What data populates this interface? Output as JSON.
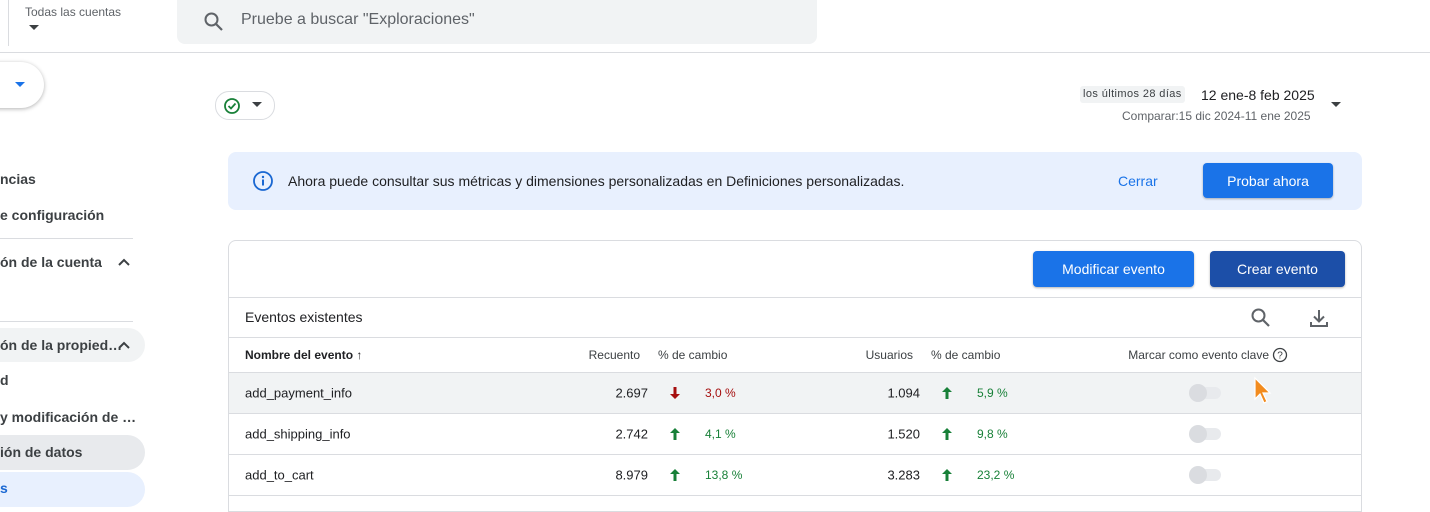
{
  "header": {
    "account_label": "Todas las cuentas",
    "search_placeholder": "Pruebe a buscar \"Exploraciones\""
  },
  "sidebar": {
    "items": [
      "ncias",
      "e configuración",
      "ón de la cuenta",
      "ón de la propied…",
      "d",
      "y modificación de …",
      "ión de datos",
      "s"
    ]
  },
  "date_range": {
    "preset": "los últimos 28 días",
    "range": "12 ene-8 feb 2025",
    "compare": "Comparar:15 dic 2024-11 ene 2025"
  },
  "banner": {
    "text": "Ahora puede consultar sus métricas y dimensiones personalizadas en Definiciones personalizadas.",
    "close": "Cerrar",
    "action": "Probar ahora"
  },
  "toolbar": {
    "modify": "Modificar evento",
    "create": "Crear evento"
  },
  "table": {
    "title": "Eventos existentes",
    "columns": [
      "Nombre del evento",
      "Recuento",
      "% de cambio",
      "Usuarios",
      "% de cambio",
      "Marcar como evento clave"
    ],
    "rows": [
      {
        "name": "add_payment_info",
        "count": "2.697",
        "count_change": "3,0 %",
        "count_trend": "down",
        "users": "1.094",
        "users_change": "5,9 %",
        "users_trend": "up"
      },
      {
        "name": "add_shipping_info",
        "count": "2.742",
        "count_change": "4,1 %",
        "count_trend": "up",
        "users": "1.520",
        "users_change": "9,8 %",
        "users_trend": "up"
      },
      {
        "name": "add_to_cart",
        "count": "8.979",
        "count_change": "13,8 %",
        "count_trend": "up",
        "users": "3.283",
        "users_change": "23,2 %",
        "users_trend": "up"
      }
    ]
  }
}
